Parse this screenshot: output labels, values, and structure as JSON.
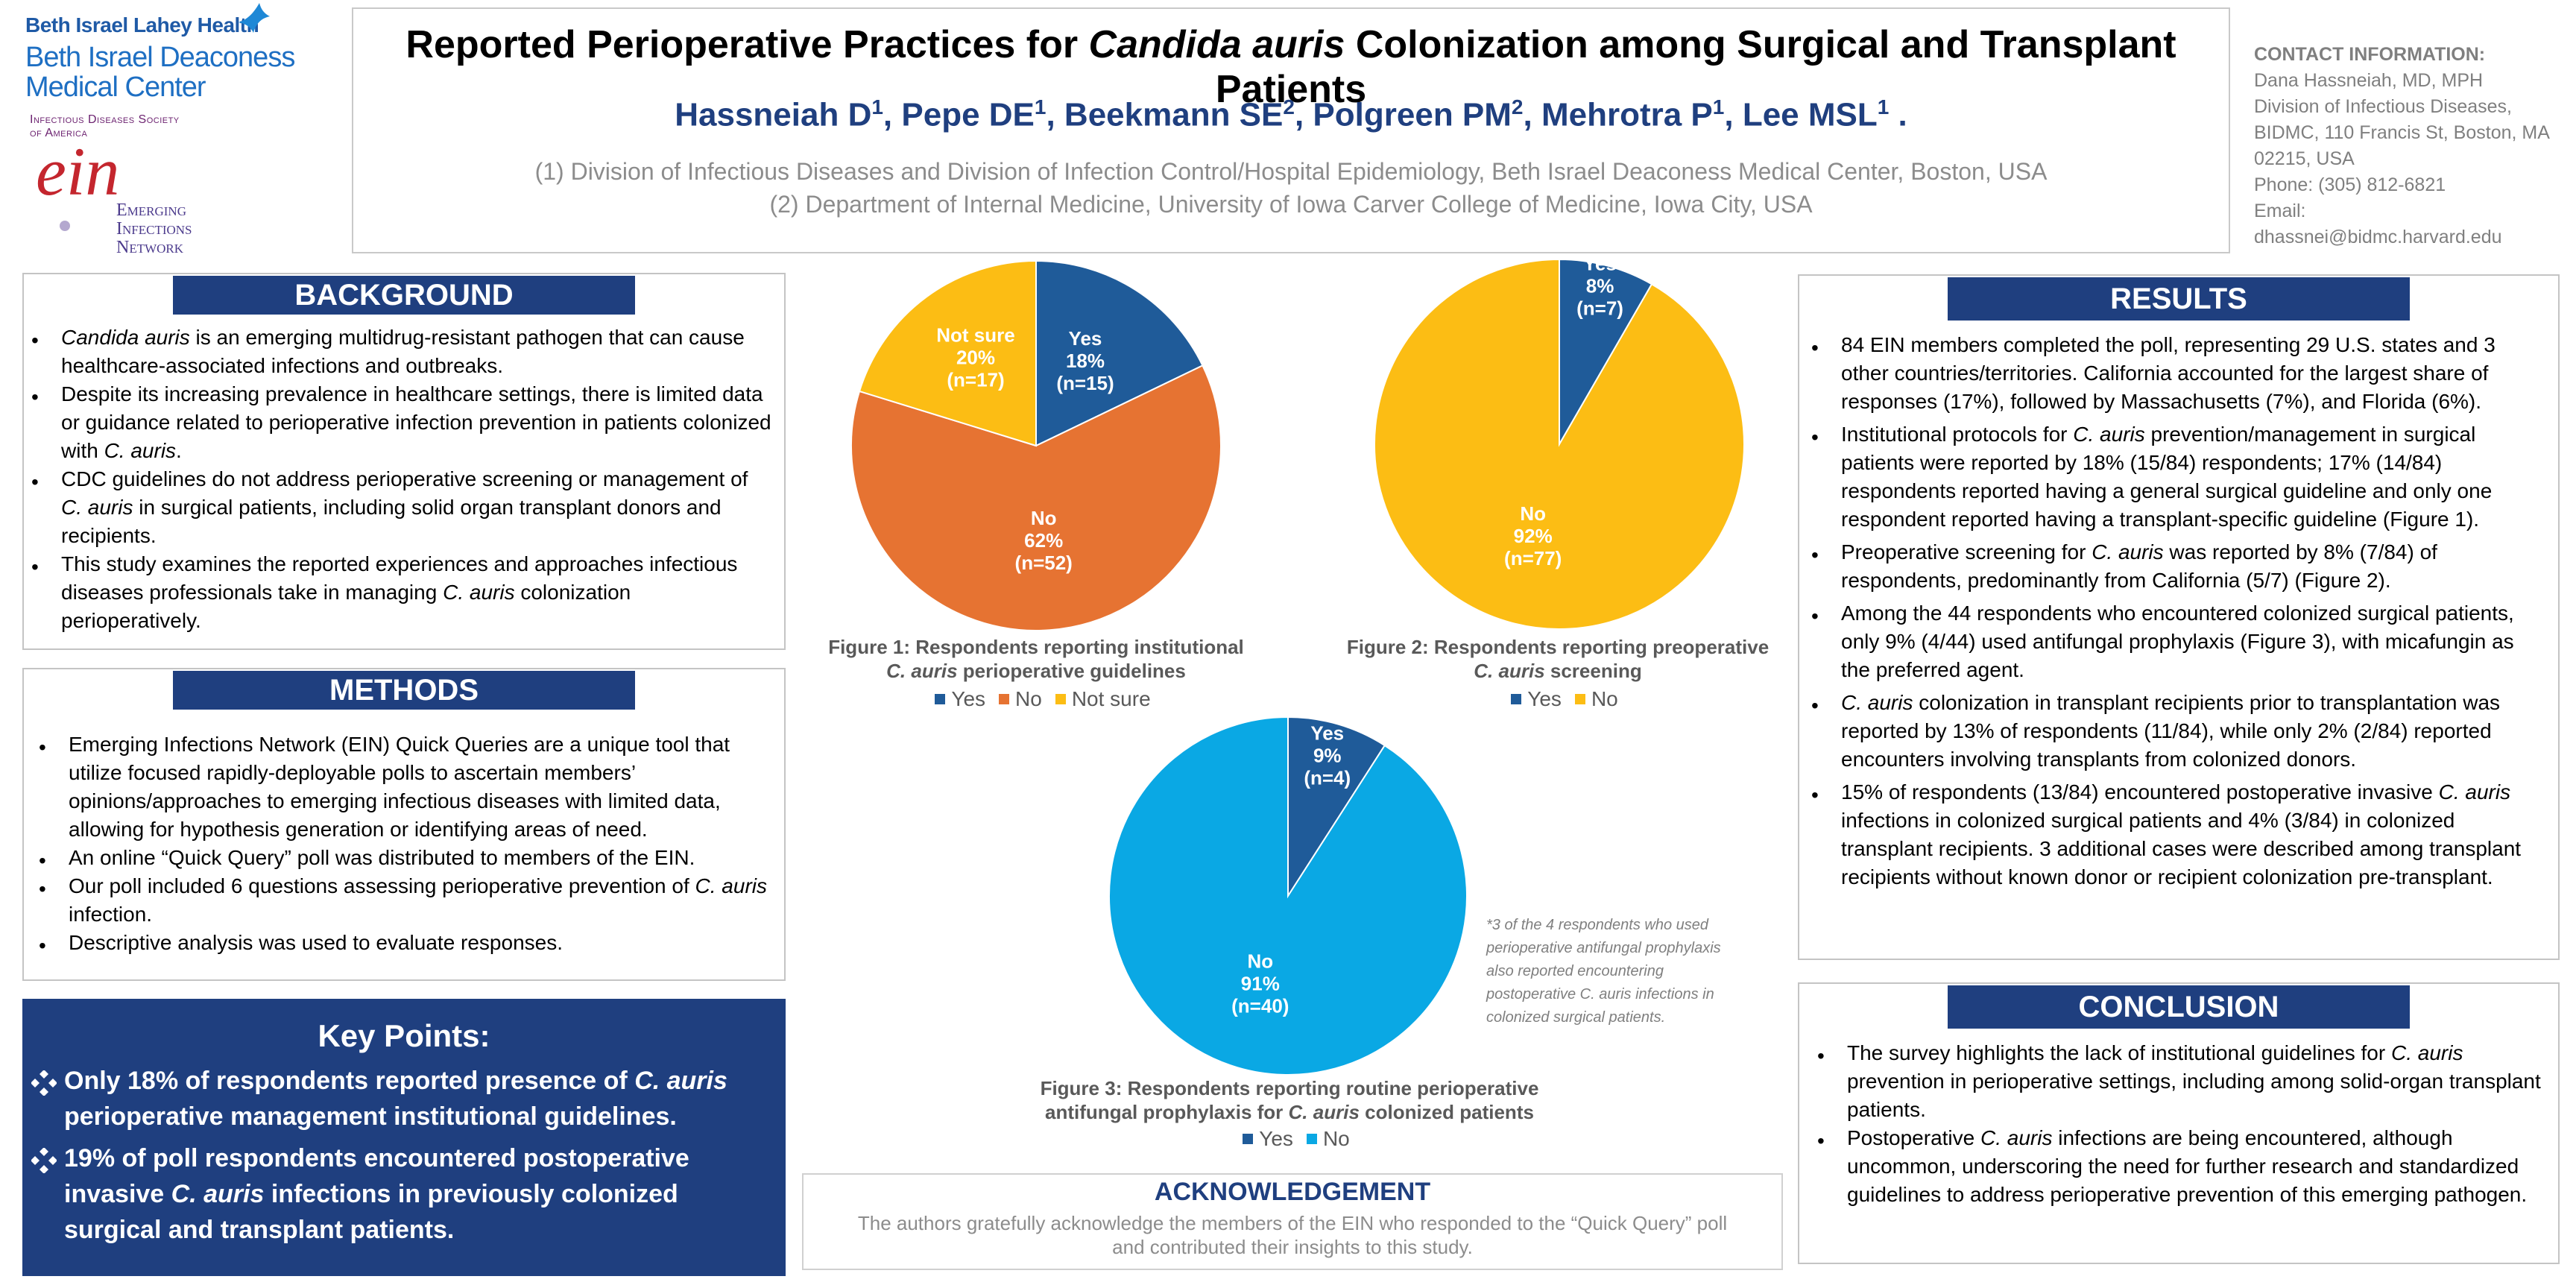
{
  "logos": {
    "bilh": "Beth Israel Lahey Health",
    "bidmc_line1": "Beth Israel Deaconess",
    "bidmc_line2": "Medical Center",
    "idsa_line1": "Infectious Diseases Society",
    "idsa_line2": "of America",
    "ein": "ein",
    "ein_line1": "Emerging",
    "ein_line2": "Infections",
    "ein_line3": "Network"
  },
  "header": {
    "title_pre": "Reported Perioperative Practices for ",
    "title_italic": "Candida auris",
    "title_post": " Colonization among Surgical and Transplant Patients",
    "authors": [
      {
        "name": "Hassneiah D",
        "sup": "1"
      },
      {
        "name": "Pepe DE",
        "sup": "1"
      },
      {
        "name": "Beekmann SE",
        "sup": "2"
      },
      {
        "name": "Polgreen PM",
        "sup": "2"
      },
      {
        "name": "Mehrotra P",
        "sup": "1"
      },
      {
        "name": "Lee MSL",
        "sup": "1"
      }
    ],
    "affiliation_1": "(1) Division of Infectious Diseases and Division of Infection Control/Hospital Epidemiology, Beth Israel Deaconess Medical Center, Boston, USA",
    "affiliation_2": "(2) Department of Internal Medicine, University of Iowa Carver College of Medicine, Iowa City, USA"
  },
  "contact": {
    "heading": "CONTACT INFORMATION:",
    "lines": [
      "Dana Hassneiah, MD, MPH",
      "Division of Infectious Diseases,",
      "BIDMC, 110 Francis St, Boston, MA",
      "02215, USA",
      "Phone: (305) 812-6821",
      "Email:",
      "dhassnei@bidmc.harvard.edu"
    ]
  },
  "background": {
    "heading": "BACKGROUND",
    "items": [
      [
        {
          "t": "Candida auris",
          "i": true
        },
        {
          "t": " is an emerging multidrug-resistant pathogen that can cause healthcare-associated infections and outbreaks."
        }
      ],
      [
        {
          "t": "Despite its increasing prevalence in healthcare settings, there is limited data or guidance related to perioperative infection prevention in patients colonized with "
        },
        {
          "t": "C. auris",
          "i": true
        },
        {
          "t": "."
        }
      ],
      [
        {
          "t": "CDC guidelines do not address perioperative screening or management of "
        },
        {
          "t": "C. auris",
          "i": true
        },
        {
          "t": " in surgical patients, including solid organ transplant donors and recipients."
        }
      ],
      [
        {
          "t": "This study examines the reported experiences and approaches infectious diseases professionals take in managing "
        },
        {
          "t": "C. auris",
          "i": true
        },
        {
          "t": " colonization perioperatively."
        }
      ]
    ]
  },
  "methods": {
    "heading": "METHODS",
    "items": [
      [
        {
          "t": "Emerging Infections Network (EIN) Quick Queries are a unique tool that utilize focused rapidly-deployable polls to ascertain members’ opinions/approaches to emerging infectious diseases with limited data, allowing for hypothesis generation or identifying areas of need."
        }
      ],
      [
        {
          "t": "An online “Quick Query” poll was distributed to members of the EIN."
        }
      ],
      [
        {
          "t": "Our poll included 6 questions assessing perioperative prevention of "
        },
        {
          "t": "C. auris",
          "i": true
        },
        {
          "t": " infection."
        }
      ],
      [
        {
          "t": "Descriptive analysis was used to evaluate responses."
        }
      ]
    ]
  },
  "key_points": {
    "heading": "Key Points:",
    "items": [
      [
        {
          "t": "Only 18% of respondents reported presence of "
        },
        {
          "t": "C. auris",
          "i": true
        },
        {
          "t": " perioperative management institutional guidelines."
        }
      ],
      [
        {
          "t": "19% of poll respondents encountered postoperative invasive "
        },
        {
          "t": "C. auris",
          "i": true
        },
        {
          "t": " infections in previously colonized surgical and transplant patients."
        }
      ]
    ]
  },
  "results": {
    "heading": "RESULTS",
    "items": [
      [
        {
          "t": "84 EIN members completed the poll, representing 29 U.S. states and 3 other countries/territories. California accounted for the largest share of responses (17%), followed by Massachusetts (7%), and Florida (6%)."
        }
      ],
      [
        {
          "t": "Institutional protocols for "
        },
        {
          "t": "C. auris",
          "i": true
        },
        {
          "t": " prevention/management in surgical patients were reported by 18% (15/84) respondents;  17% (14/84) respondents reported having a general surgical guideline and only one respondent reported having a transplant-specific guideline (Figure 1)."
        }
      ],
      [
        {
          "t": "Preoperative screening for "
        },
        {
          "t": "C. auris",
          "i": true
        },
        {
          "t": " was reported by 8% (7/84) of respondents, predominantly from California (5/7) (Figure 2)."
        }
      ],
      [
        {
          "t": "Among the 44 respondents who encountered colonized surgical patients, only 9% (4/44) used antifungal prophylaxis (Figure 3), with micafungin as the preferred agent."
        }
      ],
      [
        {
          "t": "C. auris",
          "i": true
        },
        {
          "t": " colonization in transplant recipients prior to transplantation was reported by 13% of respondents (11/84), while only 2% (2/84) reported encounters involving transplants from colonized donors."
        }
      ],
      [
        {
          "t": "15% of respondents (13/84) encountered postoperative invasive "
        },
        {
          "t": "C. auris",
          "i": true
        },
        {
          "t": " infections in colonized surgical patients and 4% (3/84)  in colonized transplant recipients. 3 additional cases were described among transplant recipients without known donor or recipient colonization pre-transplant."
        }
      ]
    ]
  },
  "conclusion": {
    "heading": "CONCLUSION",
    "items": [
      [
        {
          "t": "The survey highlights the lack of institutional guidelines for "
        },
        {
          "t": "C. auris",
          "i": true
        },
        {
          "t": " prevention in perioperative settings, including among solid-organ transplant patients."
        }
      ],
      [
        {
          "t": "Postoperative "
        },
        {
          "t": "C. auris",
          "i": true
        },
        {
          "t": " infections are being encountered, although uncommon, underscoring the need for further research and standardized guidelines to address perioperative prevention of this emerging pathogen."
        }
      ]
    ]
  },
  "chart_data": [
    {
      "type": "pie",
      "title_line1": "Figure 1: Respondents reporting institutional",
      "title_italic": "C. auris",
      "title_line2_rest": " perioperative guidelines",
      "slices": [
        {
          "label": "Yes",
          "percent": "18%",
          "n": "(n=15)",
          "value": 15,
          "color": "#1f5b99"
        },
        {
          "label": "No",
          "percent": "62%",
          "n": "(n=52)",
          "value": 52,
          "color": "#e67332"
        },
        {
          "label": "Not sure",
          "percent": "20%",
          "n": "(n=17)",
          "value": 17,
          "color": "#fcbd14"
        }
      ]
    },
    {
      "type": "pie",
      "title_line1": "Figure 2: Respondents reporting preoperative",
      "title_italic": "C. auris",
      "title_line2_rest": " screening",
      "slices": [
        {
          "label": "Yes",
          "percent": "8%",
          "n": "(n=7)",
          "value": 7,
          "color": "#1f5b99"
        },
        {
          "label": "No",
          "percent": "92%",
          "n": "(n=77)",
          "value": 77,
          "color": "#fcbd14"
        }
      ]
    },
    {
      "type": "pie",
      "title_line1": "Figure 3: Respondents reporting routine perioperative",
      "title_line2_pre": "antifungal prophylaxis for ",
      "title_italic": "C. auris",
      "title_line2_rest": " colonized patients",
      "slices": [
        {
          "label": "Yes",
          "percent": "9%",
          "n": "(n=4)",
          "value": 4,
          "color": "#1f5b99"
        },
        {
          "label": "No",
          "percent": "91%",
          "n": "(n=40)",
          "value": 40,
          "color": "#0aa8e4"
        }
      ]
    }
  ],
  "footnote": {
    "lines": [
      "*3 of the 4 respondents who used",
      "perioperative antifungal prophylaxis",
      "also reported encountering",
      "postoperative C. auris infections in",
      "colonized surgical patients."
    ]
  },
  "acknowledgement": {
    "heading": "ACKNOWLEDGEMENT",
    "line1": "The authors gratefully acknowledge the members of the EIN who responded to the “Quick Query” poll",
    "line2": "and contributed their insights to this study."
  }
}
